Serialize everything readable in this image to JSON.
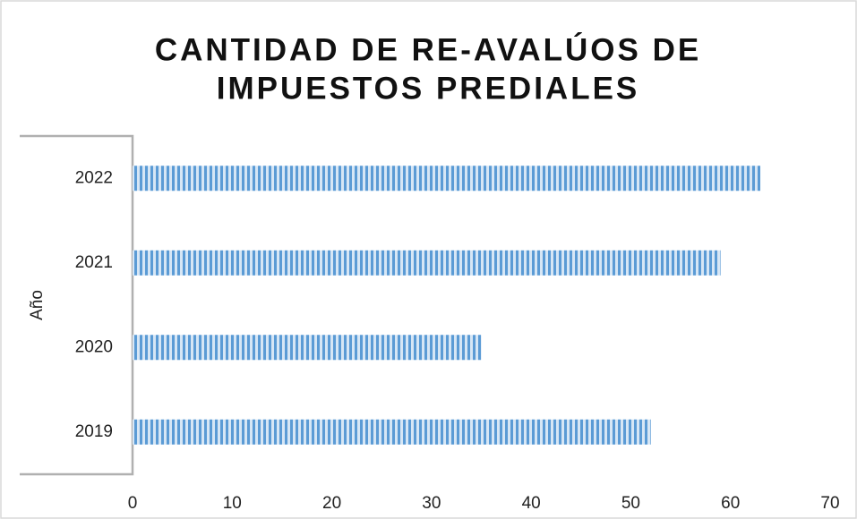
{
  "chart_data": {
    "type": "bar",
    "orientation": "horizontal",
    "title": [
      "CANTIDAD DE RE-AVALÚOS DE",
      "IMPUESTOS PREDIALES"
    ],
    "y_label": "Año",
    "categories": [
      "2019",
      "2020",
      "2021",
      "2022"
    ],
    "values": [
      52,
      35,
      59,
      63
    ],
    "color": "#5b9bd5",
    "xlim": [
      0,
      70
    ],
    "xticks": [
      0,
      10,
      20,
      30,
      40,
      50,
      60,
      70
    ],
    "grid": false
  }
}
